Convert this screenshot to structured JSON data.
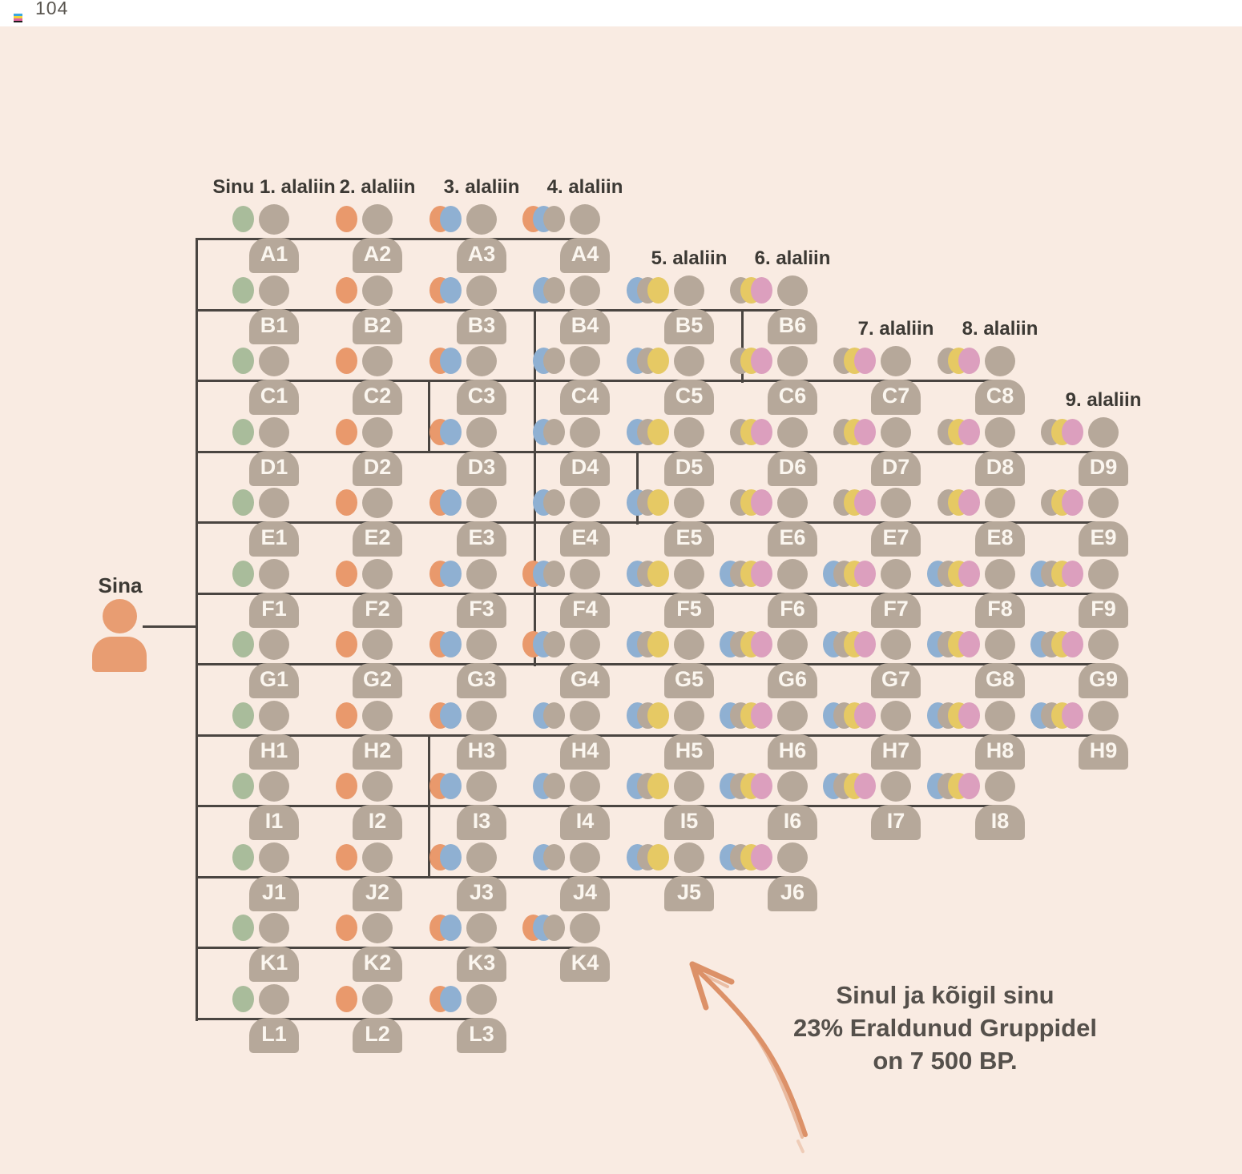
{
  "page": {
    "number": "104"
  },
  "palette": {
    "background": "#f9ebe2",
    "top_strip": "#ffffff",
    "person": "#b6a89a",
    "root_person": "#e89d72",
    "line": "#4a4541",
    "ink": "#3c3934",
    "person_label_ink": "#fbf6ef",
    "annotation_ink": "#55504b",
    "arrow": "#dc9168",
    "dot_colors": {
      "green": "#a9bc9b",
      "orange": "#e9996c",
      "blue": "#8fb0d2",
      "taupe": "#b6a89a",
      "yellow": "#e6c964",
      "pink": "#dc9fbe"
    }
  },
  "root": {
    "label": "Sina"
  },
  "column_headers": [
    {
      "label": "Sinu 1. alaliin",
      "col": 1,
      "row": "A"
    },
    {
      "label": "2. alaliin",
      "col": 2,
      "row": "A"
    },
    {
      "label": "3. alaliin",
      "col": 3,
      "row": "A"
    },
    {
      "label": "4. alaliin",
      "col": 4,
      "row": "A"
    },
    {
      "label": "5. alaliin",
      "col": 5,
      "row": "B"
    },
    {
      "label": "6. alaliin",
      "col": 6,
      "row": "B"
    },
    {
      "label": "7. alaliin",
      "col": 7,
      "row": "C"
    },
    {
      "label": "8. alaliin",
      "col": 8,
      "row": "C"
    },
    {
      "label": "9. alaliin",
      "col": 9,
      "row": "D"
    }
  ],
  "tree": {
    "rows": [
      {
        "id": "A",
        "members": [
          {
            "label": "A1",
            "dots": [
              "green"
            ]
          },
          {
            "label": "A2",
            "dots": [
              "orange"
            ]
          },
          {
            "label": "A3",
            "dots": [
              "orange",
              "blue"
            ]
          },
          {
            "label": "A4",
            "dots": [
              "orange",
              "blue",
              "taupe"
            ]
          }
        ]
      },
      {
        "id": "B",
        "members": [
          {
            "label": "B1",
            "dots": [
              "green"
            ]
          },
          {
            "label": "B2",
            "dots": [
              "orange"
            ]
          },
          {
            "label": "B3",
            "dots": [
              "orange",
              "blue"
            ]
          },
          {
            "label": "B4",
            "dots": [
              "blue",
              "taupe"
            ]
          },
          {
            "label": "B5",
            "dots": [
              "blue",
              "taupe",
              "yellow"
            ]
          },
          {
            "label": "B6",
            "dots": [
              "taupe",
              "yellow",
              "pink"
            ]
          }
        ]
      },
      {
        "id": "C",
        "members": [
          {
            "label": "C1",
            "dots": [
              "green"
            ]
          },
          {
            "label": "C2",
            "dots": [
              "orange"
            ]
          },
          {
            "label": "C3",
            "dots": [
              "orange",
              "blue"
            ]
          },
          {
            "label": "C4",
            "dots": [
              "blue",
              "taupe"
            ]
          },
          {
            "label": "C5",
            "dots": [
              "blue",
              "taupe",
              "yellow"
            ]
          },
          {
            "label": "C6",
            "dots": [
              "taupe",
              "yellow",
              "pink"
            ]
          },
          {
            "label": "C7",
            "dots": [
              "taupe",
              "yellow",
              "pink"
            ]
          },
          {
            "label": "C8",
            "dots": [
              "taupe",
              "yellow",
              "pink"
            ]
          }
        ]
      },
      {
        "id": "D",
        "members": [
          {
            "label": "D1",
            "dots": [
              "green"
            ]
          },
          {
            "label": "D2",
            "dots": [
              "orange"
            ]
          },
          {
            "label": "D3",
            "dots": [
              "orange",
              "blue"
            ]
          },
          {
            "label": "D4",
            "dots": [
              "blue",
              "taupe"
            ]
          },
          {
            "label": "D5",
            "dots": [
              "blue",
              "taupe",
              "yellow"
            ]
          },
          {
            "label": "D6",
            "dots": [
              "taupe",
              "yellow",
              "pink"
            ]
          },
          {
            "label": "D7",
            "dots": [
              "taupe",
              "yellow",
              "pink"
            ]
          },
          {
            "label": "D8",
            "dots": [
              "taupe",
              "yellow",
              "pink"
            ]
          },
          {
            "label": "D9",
            "dots": [
              "taupe",
              "yellow",
              "pink"
            ]
          }
        ]
      },
      {
        "id": "E",
        "members": [
          {
            "label": "E1",
            "dots": [
              "green"
            ]
          },
          {
            "label": "E2",
            "dots": [
              "orange"
            ]
          },
          {
            "label": "E3",
            "dots": [
              "orange",
              "blue"
            ]
          },
          {
            "label": "E4",
            "dots": [
              "blue",
              "taupe"
            ]
          },
          {
            "label": "E5",
            "dots": [
              "blue",
              "taupe",
              "yellow"
            ]
          },
          {
            "label": "E6",
            "dots": [
              "taupe",
              "yellow",
              "pink"
            ]
          },
          {
            "label": "E7",
            "dots": [
              "taupe",
              "yellow",
              "pink"
            ]
          },
          {
            "label": "E8",
            "dots": [
              "taupe",
              "yellow",
              "pink"
            ]
          },
          {
            "label": "E9",
            "dots": [
              "taupe",
              "yellow",
              "pink"
            ]
          }
        ]
      },
      {
        "id": "F",
        "members": [
          {
            "label": "F1",
            "dots": [
              "green"
            ]
          },
          {
            "label": "F2",
            "dots": [
              "orange"
            ]
          },
          {
            "label": "F3",
            "dots": [
              "orange",
              "blue"
            ]
          },
          {
            "label": "F4",
            "dots": [
              "orange",
              "blue",
              "taupe"
            ]
          },
          {
            "label": "F5",
            "dots": [
              "blue",
              "taupe",
              "yellow"
            ]
          },
          {
            "label": "F6",
            "dots": [
              "blue",
              "taupe",
              "yellow",
              "pink"
            ]
          },
          {
            "label": "F7",
            "dots": [
              "blue",
              "taupe",
              "yellow",
              "pink"
            ]
          },
          {
            "label": "F8",
            "dots": [
              "blue",
              "taupe",
              "yellow",
              "pink"
            ]
          },
          {
            "label": "F9",
            "dots": [
              "blue",
              "taupe",
              "yellow",
              "pink"
            ]
          }
        ]
      },
      {
        "id": "G",
        "members": [
          {
            "label": "G1",
            "dots": [
              "green"
            ]
          },
          {
            "label": "G2",
            "dots": [
              "orange"
            ]
          },
          {
            "label": "G3",
            "dots": [
              "orange",
              "blue"
            ]
          },
          {
            "label": "G4",
            "dots": [
              "orange",
              "blue",
              "taupe"
            ]
          },
          {
            "label": "G5",
            "dots": [
              "blue",
              "taupe",
              "yellow"
            ]
          },
          {
            "label": "G6",
            "dots": [
              "blue",
              "taupe",
              "yellow",
              "pink"
            ]
          },
          {
            "label": "G7",
            "dots": [
              "blue",
              "taupe",
              "yellow",
              "pink"
            ]
          },
          {
            "label": "G8",
            "dots": [
              "blue",
              "taupe",
              "yellow",
              "pink"
            ]
          },
          {
            "label": "G9",
            "dots": [
              "blue",
              "taupe",
              "yellow",
              "pink"
            ]
          }
        ]
      },
      {
        "id": "H",
        "members": [
          {
            "label": "H1",
            "dots": [
              "green"
            ]
          },
          {
            "label": "H2",
            "dots": [
              "orange"
            ]
          },
          {
            "label": "H3",
            "dots": [
              "orange",
              "blue"
            ]
          },
          {
            "label": "H4",
            "dots": [
              "blue",
              "taupe"
            ]
          },
          {
            "label": "H5",
            "dots": [
              "blue",
              "taupe",
              "yellow"
            ]
          },
          {
            "label": "H6",
            "dots": [
              "blue",
              "taupe",
              "yellow",
              "pink"
            ]
          },
          {
            "label": "H7",
            "dots": [
              "blue",
              "taupe",
              "yellow",
              "pink"
            ]
          },
          {
            "label": "H8",
            "dots": [
              "blue",
              "taupe",
              "yellow",
              "pink"
            ]
          },
          {
            "label": "H9",
            "dots": [
              "blue",
              "taupe",
              "yellow",
              "pink"
            ]
          }
        ]
      },
      {
        "id": "I",
        "members": [
          {
            "label": "I1",
            "dots": [
              "green"
            ]
          },
          {
            "label": "I2",
            "dots": [
              "orange"
            ]
          },
          {
            "label": "I3",
            "dots": [
              "orange",
              "blue"
            ]
          },
          {
            "label": "I4",
            "dots": [
              "blue",
              "taupe"
            ]
          },
          {
            "label": "I5",
            "dots": [
              "blue",
              "taupe",
              "yellow"
            ]
          },
          {
            "label": "I6",
            "dots": [
              "blue",
              "taupe",
              "yellow",
              "pink"
            ]
          },
          {
            "label": "I7",
            "dots": [
              "blue",
              "taupe",
              "yellow",
              "pink"
            ]
          },
          {
            "label": "I8",
            "dots": [
              "blue",
              "taupe",
              "yellow",
              "pink"
            ]
          }
        ]
      },
      {
        "id": "J",
        "members": [
          {
            "label": "J1",
            "dots": [
              "green"
            ]
          },
          {
            "label": "J2",
            "dots": [
              "orange"
            ]
          },
          {
            "label": "J3",
            "dots": [
              "orange",
              "blue"
            ]
          },
          {
            "label": "J4",
            "dots": [
              "blue",
              "taupe"
            ]
          },
          {
            "label": "J5",
            "dots": [
              "blue",
              "taupe",
              "yellow"
            ]
          },
          {
            "label": "J6",
            "dots": [
              "blue",
              "taupe",
              "yellow",
              "pink"
            ]
          }
        ]
      },
      {
        "id": "K",
        "members": [
          {
            "label": "K1",
            "dots": [
              "green"
            ]
          },
          {
            "label": "K2",
            "dots": [
              "orange"
            ]
          },
          {
            "label": "K3",
            "dots": [
              "orange",
              "blue"
            ]
          },
          {
            "label": "K4",
            "dots": [
              "orange",
              "blue",
              "taupe"
            ]
          }
        ]
      },
      {
        "id": "L",
        "members": [
          {
            "label": "L1",
            "dots": [
              "green"
            ]
          },
          {
            "label": "L2",
            "dots": [
              "orange"
            ]
          },
          {
            "label": "L3",
            "dots": [
              "orange",
              "blue"
            ]
          }
        ]
      }
    ]
  },
  "annotation": {
    "lines": [
      "Sinul ja kõigil sinu",
      "23% Eraldunud Gruppidel",
      "on 7 500 BP."
    ]
  }
}
